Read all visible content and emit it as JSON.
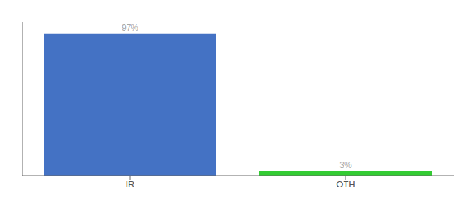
{
  "chart_data": {
    "type": "bar",
    "categories": [
      "IR",
      "OTH"
    ],
    "values": [
      97,
      3
    ],
    "value_labels": [
      "97%",
      "3%"
    ],
    "colors": [
      "#4472c4",
      "#33cc33"
    ],
    "ylim": [
      0,
      105
    ],
    "data_labels": true,
    "tick_labels": "x",
    "grid": false
  }
}
